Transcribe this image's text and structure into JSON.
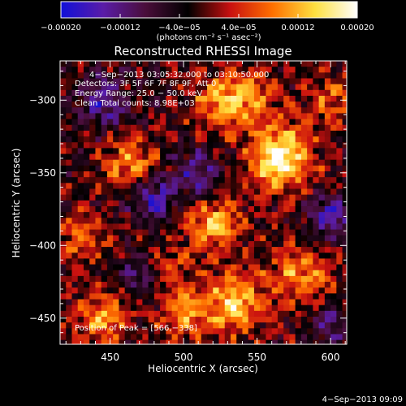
{
  "chart_data": {
    "type": "heatmap",
    "title": "Reconstructed RHESSI Image",
    "xlabel": "Heliocentric X (arcsec)",
    "ylabel": "Heliocentric Y (arcsec)",
    "xlim": [
      416,
      611
    ],
    "ylim": [
      -468,
      -273
    ],
    "xticks": [
      450,
      500,
      550,
      600
    ],
    "xtick_labels": [
      "450",
      "500",
      "550",
      "600"
    ],
    "yticks": [
      -300,
      -350,
      -400,
      -450
    ],
    "ytick_labels": [
      "−300",
      "−350",
      "−400",
      "−450"
    ],
    "colorbar": {
      "min": -0.0002,
      "max": 0.0002,
      "ticks": [
        -0.0002,
        -0.00012,
        -4e-05,
        4e-05,
        0.00012,
        0.0002
      ],
      "tick_labels": [
        "−0.00020",
        "−0.00012",
        "−4.0e−05",
        "4.0e−05",
        "0.00012",
        "0.00020"
      ],
      "unit_label": "(photons cm⁻² s⁻¹ asec⁻²)",
      "colors": [
        "#1010d8",
        "#5a1ca8",
        "#4a0e3a",
        "#000000",
        "#c81010",
        "#ff7000",
        "#ffe040",
        "#ffffff"
      ]
    },
    "annotations": [
      "4−Sep−2013 03:05:32.000 to 03:10:50.000",
      "Detectors: 3F 5F 6F 7F 8F 9F, Att 0",
      "Energy Range: 25.0 − 50.0 keV",
      "Clean      Total counts: 8.98E+03",
      "Position of Peak = [566,−338]"
    ],
    "peak": [
      566,
      -338
    ],
    "blobs": [
      {
        "x": 566,
        "y": -340,
        "amp": 0.000205,
        "sigma": 15
      },
      {
        "x": 543,
        "y": -300,
        "amp": 0.00012,
        "sigma": 14
      },
      {
        "x": 465,
        "y": -345,
        "amp": 0.000135,
        "sigma": 12
      },
      {
        "x": 520,
        "y": -300,
        "amp": 9e-05,
        "sigma": 12
      },
      {
        "x": 520,
        "y": -385,
        "amp": 0.00014,
        "sigma": 13
      },
      {
        "x": 535,
        "y": -440,
        "amp": 0.00016,
        "sigma": 14
      },
      {
        "x": 580,
        "y": -420,
        "amp": 0.00012,
        "sigma": 14
      },
      {
        "x": 445,
        "y": -450,
        "amp": 0.00013,
        "sigma": 12
      },
      {
        "x": 430,
        "y": -395,
        "amp": 0.0001,
        "sigma": 12
      },
      {
        "x": 500,
        "y": -445,
        "amp": 0.00011,
        "sigma": 12
      },
      {
        "x": 600,
        "y": -300,
        "amp": 8e-05,
        "sigma": 12
      },
      {
        "x": 490,
        "y": -415,
        "amp": 7e-05,
        "sigma": 10
      },
      {
        "x": 480,
        "y": -365,
        "amp": -0.00013,
        "sigma": 12
      },
      {
        "x": 445,
        "y": -300,
        "amp": -0.00012,
        "sigma": 12
      },
      {
        "x": 510,
        "y": -350,
        "amp": -0.00011,
        "sigma": 11
      },
      {
        "x": 600,
        "y": -380,
        "amp": -0.00012,
        "sigma": 12
      },
      {
        "x": 600,
        "y": -455,
        "amp": -0.0001,
        "sigma": 10
      },
      {
        "x": 470,
        "y": -420,
        "amp": -8e-05,
        "sigma": 10
      }
    ]
  },
  "footer": {
    "timestamp": "4−Sep−2013 09:09"
  }
}
